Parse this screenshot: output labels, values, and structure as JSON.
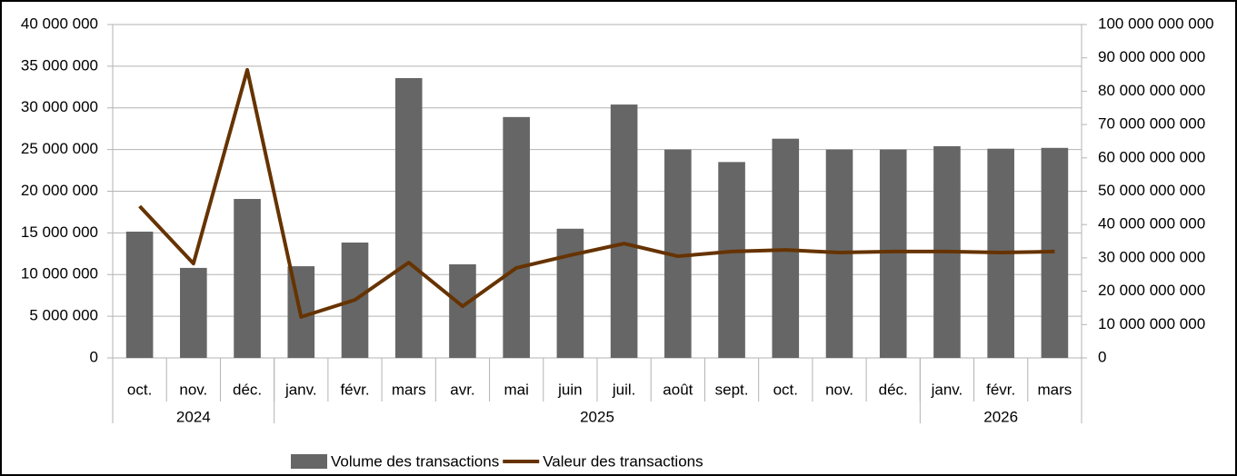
{
  "chart_data": {
    "type": "bar_line",
    "categories": [
      "oct.",
      "nov.",
      "déc.",
      "janv.",
      "févr.",
      "mars",
      "avr.",
      "mai",
      "juin",
      "juil.",
      "août",
      "sept.",
      "oct.",
      "nov.",
      "déc.",
      "janv.",
      "févr.",
      "mars"
    ],
    "groups": [
      {
        "label": "2024",
        "count": 3
      },
      {
        "label": "2025",
        "count": 12
      },
      {
        "label": "2026",
        "count": 3
      }
    ],
    "series": [
      {
        "name": "Volume des transactions",
        "type": "bar",
        "color": "#666666",
        "axis": "y",
        "values": [
          15150000,
          10800000,
          19070000,
          11000000,
          13840000,
          33570000,
          11230000,
          28900000,
          15500000,
          30400000,
          25000000,
          23500000,
          26300000,
          25000000,
          25000000,
          25400000,
          25100000,
          25200000
        ]
      },
      {
        "name": "Valeur des transactions",
        "type": "line",
        "color": "#663300",
        "axis": "y2",
        "values": [
          45500000000,
          28300000000,
          86400000000,
          12300000000,
          17400000000,
          28600000000,
          15500000000,
          27000000000,
          30800000000,
          34300000000,
          30500000000,
          31900000000,
          32400000000,
          31600000000,
          31900000000,
          31900000000,
          31600000000,
          31900000000
        ]
      }
    ],
    "ylim": [
      0,
      40000000
    ],
    "yticks": [
      0,
      {
        "value": 5000000,
        "label": "5 000 000"
      },
      {
        "value": 10000000,
        "label": "10 000 000"
      },
      {
        "value": 15000000,
        "label": "15 000 000"
      },
      {
        "value": 20000000,
        "label": "20 000 000"
      },
      {
        "value": 25000000,
        "label": "25 000 000"
      },
      {
        "value": 30000000,
        "label": "30 000 000"
      },
      {
        "value": 35000000,
        "label": "35 000 000"
      },
      {
        "value": 40000000,
        "label": "40 000 000"
      }
    ],
    "y2lim": [
      0,
      100000000000
    ],
    "y2ticks": [
      0,
      {
        "value": 10000000000,
        "label": "10 000 000 000"
      },
      {
        "value": 20000000000,
        "label": "20 000 000 000"
      },
      {
        "value": 30000000000,
        "label": "30 000 000 000"
      },
      {
        "value": 40000000000,
        "label": "40 000 000 000"
      },
      {
        "value": 50000000000,
        "label": "50 000 000 000"
      },
      {
        "value": 60000000000,
        "label": "60 000 000 000"
      },
      {
        "value": 70000000000,
        "label": "70 000 000 000"
      },
      {
        "value": 80000000000,
        "label": "80 000 000 000"
      },
      {
        "value": 90000000000,
        "label": "90 000 000 000"
      },
      {
        "value": 100000000000,
        "label": "100 000 000 000"
      }
    ],
    "grid": true,
    "legend": "bottom"
  }
}
